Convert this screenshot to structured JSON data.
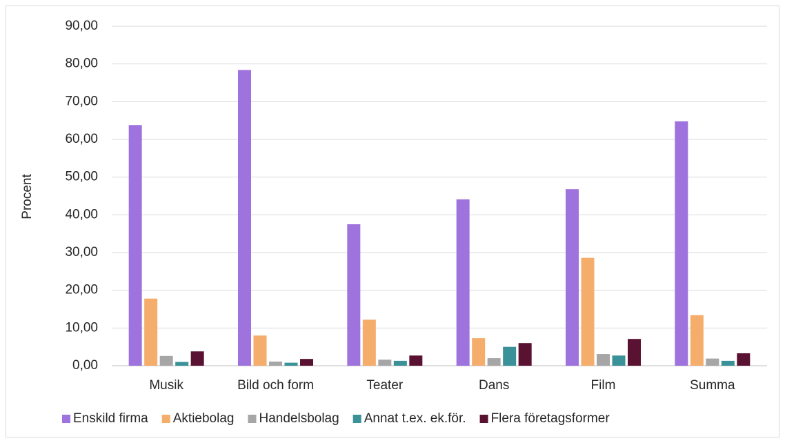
{
  "chart_data": {
    "type": "bar",
    "ylabel": "Procent",
    "categories": [
      "Musik",
      "Bild och form",
      "Teater",
      "Dans",
      "Film",
      "Summa"
    ],
    "series": [
      {
        "name": "Enskild firma",
        "color": "#9e73dd",
        "values": [
          63.8,
          78.4,
          37.5,
          44.1,
          46.8,
          64.8
        ]
      },
      {
        "name": "Aktiebolag",
        "color": "#f5ad6b",
        "values": [
          17.8,
          8.0,
          12.2,
          7.3,
          28.6,
          13.4
        ]
      },
      {
        "name": "Handelsbolag",
        "color": "#a6a6a6",
        "values": [
          2.6,
          1.1,
          1.6,
          2.0,
          3.1,
          1.9
        ]
      },
      {
        "name": "Annat t.ex. ek.för.",
        "color": "#3a9197",
        "values": [
          1.0,
          0.8,
          1.3,
          5.0,
          2.7,
          1.3
        ]
      },
      {
        "name": "Flera företagsformer",
        "color": "#5a1232",
        "values": [
          3.8,
          1.8,
          2.7,
          6.0,
          7.1,
          3.3
        ]
      }
    ],
    "ylim": [
      0,
      90
    ],
    "yticks": [
      {
        "value": 0,
        "label": "0,00"
      },
      {
        "value": 10,
        "label": "10,00"
      },
      {
        "value": 20,
        "label": "20,00"
      },
      {
        "value": 30,
        "label": "30,00"
      },
      {
        "value": 40,
        "label": "40,00"
      },
      {
        "value": 50,
        "label": "50,00"
      },
      {
        "value": 60,
        "label": "60,00"
      },
      {
        "value": 70,
        "label": "70,00"
      },
      {
        "value": 80,
        "label": "80,00"
      },
      {
        "value": 90,
        "label": "90,00"
      }
    ],
    "grid": true,
    "legend": "bottom"
  }
}
